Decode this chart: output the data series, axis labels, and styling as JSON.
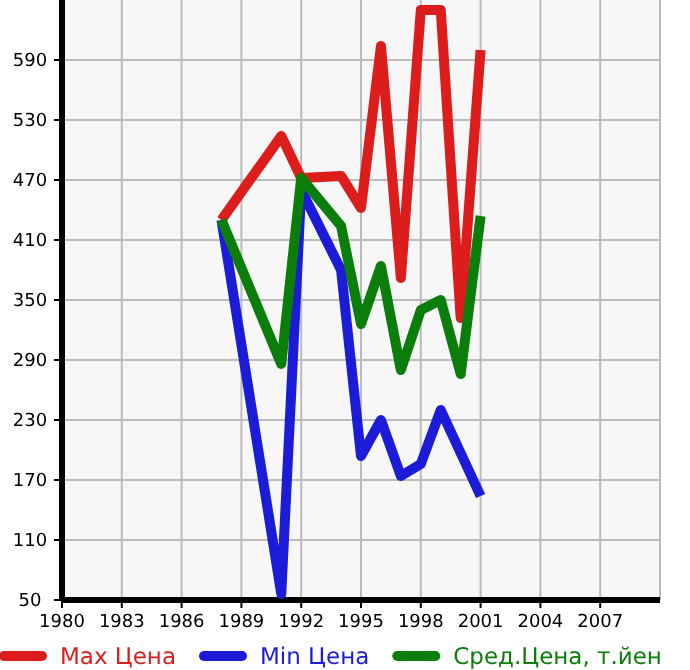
{
  "chart_data": {
    "type": "line",
    "x": [
      1988,
      1991,
      1992,
      1994,
      1995,
      1996,
      1997,
      1998,
      1999,
      2000,
      2001
    ],
    "series": [
      {
        "name": "Max Цена",
        "color": "#dd1c1c",
        "values": [
          430,
          514,
          472,
          474,
          442,
          604,
          372,
          640,
          640,
          332,
          600
        ]
      },
      {
        "name": "Min Цена",
        "color": "#1c1cd8",
        "values": [
          430,
          56,
          460,
          380,
          194,
          230,
          174,
          186,
          240,
          197,
          154
        ]
      },
      {
        "name": "Сред.Цена, т.йен",
        "color": "#0a7d0a",
        "values": [
          430,
          286,
          472,
          424,
          326,
          384,
          280,
          340,
          350,
          276,
          434
        ]
      }
    ],
    "xlim": [
      1980,
      2010
    ],
    "xticks": [
      1980,
      1983,
      1986,
      1989,
      1992,
      1995,
      1998,
      2001,
      2004,
      2007
    ],
    "ylim": [
      50,
      650
    ],
    "yticks": [
      50,
      110,
      170,
      230,
      290,
      350,
      410,
      470,
      530,
      590
    ],
    "grid": true,
    "legend": "bottom",
    "line_style": "solid",
    "marker": "none"
  }
}
